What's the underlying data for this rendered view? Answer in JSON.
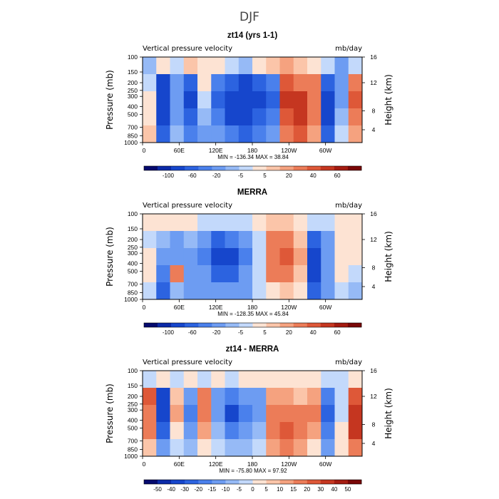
{
  "figure": {
    "title": "DJF"
  },
  "palettes": {
    "standard": [
      "#050a6e",
      "#0b2aa8",
      "#1646cc",
      "#2c63e0",
      "#4a80ec",
      "#6d9cf2",
      "#96baf6",
      "#c3d9fb",
      "#fde3d3",
      "#fbc5a9",
      "#f5a27f",
      "#ec7c58",
      "#de5838",
      "#c53620",
      "#a41b10",
      "#7a0707"
    ],
    "diff": [
      "#050a6e",
      "#0b2aa8",
      "#1646cc",
      "#2c63e0",
      "#4a80ec",
      "#6d9cf2",
      "#96baf6",
      "#c3d9fb",
      "#fde3d3",
      "#fbc5a9",
      "#f5a27f",
      "#ec7c58",
      "#de5838",
      "#c53620",
      "#a41b10",
      "#7a0707"
    ]
  },
  "chart_data": [
    {
      "type": "heatmap",
      "title": "zt14 (yrs 1-1)",
      "left_label": "Vertical pressure velocity",
      "right_label": "mb/day",
      "ylabel": "Pressure (mb)",
      "y2label": "Height (km)",
      "y_ticks": [
        "100",
        "150",
        "200",
        "250",
        "300",
        "400",
        "500",
        "700",
        "850",
        "1000"
      ],
      "y2_ticks": [
        "16",
        "12",
        "8",
        "4"
      ],
      "x_ticks": [
        "0",
        "60E",
        "120E",
        "180",
        "120W",
        "60W"
      ],
      "stats": "MIN = -136.34   MAX =  38.84",
      "colorbar_labels": [
        "-100",
        "-60",
        "-20",
        "-5",
        "5",
        "20",
        "40",
        "60"
      ],
      "palette": "standard",
      "field": [
        [
          0.4,
          0.55,
          0.45,
          0.6,
          0.5,
          0.55,
          0.45,
          0.4,
          0.5,
          0.6,
          0.65,
          0.6,
          0.55,
          0.45,
          0.3,
          0.45
        ],
        [
          0.45,
          0.15,
          0.35,
          0.2,
          0.5,
          0.25,
          0.2,
          0.15,
          0.2,
          0.25,
          0.8,
          0.75,
          0.7,
          0.2,
          0.3,
          0.75
        ],
        [
          0.5,
          0.1,
          0.3,
          0.15,
          0.45,
          0.2,
          0.1,
          0.1,
          0.15,
          0.2,
          0.85,
          0.85,
          0.75,
          0.1,
          0.35,
          0.8
        ],
        [
          0.55,
          0.15,
          0.35,
          0.2,
          0.4,
          0.25,
          0.15,
          0.15,
          0.2,
          0.25,
          0.8,
          0.85,
          0.7,
          0.15,
          0.4,
          0.75
        ],
        [
          0.6,
          0.2,
          0.4,
          0.25,
          0.35,
          0.3,
          0.25,
          0.2,
          0.25,
          0.35,
          0.7,
          0.8,
          0.65,
          0.2,
          0.45,
          0.65
        ]
      ]
    },
    {
      "type": "heatmap",
      "title": "MERRA",
      "left_label": "Vertical pressure velocity",
      "right_label": "mb/day",
      "ylabel": "Pressure (mb)",
      "y2label": "Height (km)",
      "y_ticks": [
        "100",
        "150",
        "200",
        "250",
        "300",
        "400",
        "500",
        "700",
        "850",
        "1000"
      ],
      "y2_ticks": [
        "16",
        "12",
        "8",
        "4"
      ],
      "x_ticks": [
        "0",
        "60E",
        "120E",
        "180",
        "120W",
        "60W"
      ],
      "stats": "MIN = -128.35   MAX =  45.84",
      "colorbar_labels": [
        "-100",
        "-60",
        "-20",
        "-5",
        "5",
        "20",
        "40",
        "60"
      ],
      "palette": "standard",
      "field": [
        [
          0.5,
          0.5,
          0.5,
          0.5,
          0.45,
          0.45,
          0.45,
          0.45,
          0.55,
          0.6,
          0.6,
          0.55,
          0.45,
          0.45,
          0.5,
          0.55
        ],
        [
          0.45,
          0.4,
          0.35,
          0.4,
          0.3,
          0.2,
          0.25,
          0.3,
          0.45,
          0.7,
          0.75,
          0.6,
          0.2,
          0.35,
          0.55,
          0.5
        ],
        [
          0.5,
          0.3,
          0.3,
          0.35,
          0.25,
          0.15,
          0.15,
          0.25,
          0.45,
          0.75,
          0.8,
          0.65,
          0.15,
          0.3,
          0.55,
          0.5
        ],
        [
          0.55,
          0.25,
          0.7,
          0.3,
          0.3,
          0.2,
          0.2,
          0.3,
          0.45,
          0.7,
          0.75,
          0.6,
          0.15,
          0.3,
          0.5,
          0.45
        ],
        [
          0.45,
          0.2,
          0.4,
          0.35,
          0.35,
          0.3,
          0.3,
          0.35,
          0.45,
          0.55,
          0.6,
          0.55,
          0.2,
          0.35,
          0.45,
          0.4
        ]
      ]
    },
    {
      "type": "heatmap",
      "title": "zt14 - MERRA",
      "left_label": "Vertical pressure velocity",
      "right_label": "mb/day",
      "ylabel": "Pressure (mb)",
      "y2label": "Height (km)",
      "y_ticks": [
        "100",
        "150",
        "200",
        "250",
        "300",
        "400",
        "500",
        "700",
        "850",
        "1000"
      ],
      "y2_ticks": [
        "16",
        "12",
        "8",
        "4"
      ],
      "x_ticks": [
        "0",
        "60E",
        "120E",
        "180",
        "120W",
        "60W"
      ],
      "stats": "MIN = -75.80   MAX =  97.92",
      "colorbar_labels": [
        "-50",
        "-40",
        "-30",
        "-20",
        "-15",
        "-10",
        "-5",
        "0",
        "5",
        "10",
        "15",
        "20",
        "30",
        "40",
        "50"
      ],
      "palette": "diff",
      "field": [
        [
          0.45,
          0.55,
          0.45,
          0.55,
          0.45,
          0.5,
          0.45,
          0.5,
          0.5,
          0.55,
          0.55,
          0.55,
          0.5,
          0.45,
          0.45,
          0.55
        ],
        [
          0.8,
          0.15,
          0.6,
          0.3,
          0.7,
          0.35,
          0.25,
          0.3,
          0.35,
          0.65,
          0.65,
          0.6,
          0.65,
          0.25,
          0.45,
          0.8
        ],
        [
          0.75,
          0.1,
          0.65,
          0.25,
          0.75,
          0.3,
          0.15,
          0.25,
          0.3,
          0.7,
          0.75,
          0.7,
          0.7,
          0.2,
          0.45,
          0.85
        ],
        [
          0.7,
          0.2,
          0.55,
          0.35,
          0.65,
          0.4,
          0.25,
          0.35,
          0.4,
          0.75,
          0.8,
          0.7,
          0.65,
          0.25,
          0.55,
          0.85
        ],
        [
          0.6,
          0.3,
          0.45,
          0.4,
          0.5,
          0.45,
          0.4,
          0.4,
          0.45,
          0.65,
          0.7,
          0.65,
          0.55,
          0.35,
          0.55,
          0.75
        ]
      ]
    }
  ]
}
